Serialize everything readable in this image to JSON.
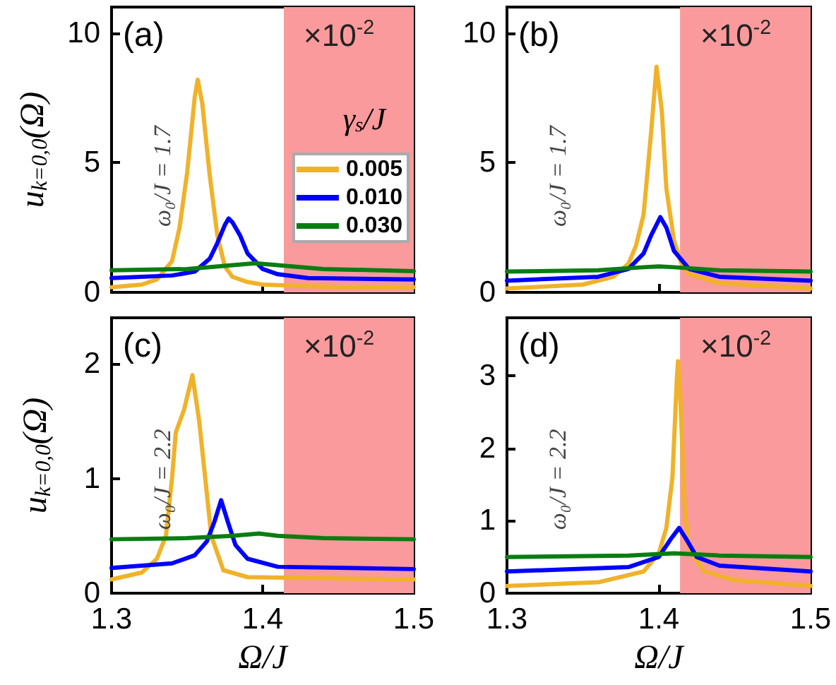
{
  "chart_data": [
    {
      "type": "line",
      "ylabel": "u$_{k=0,0}$(Ω)",
      "xlim": [
        1.3,
        1.5
      ],
      "xticks": [
        1.3,
        1.4,
        1.5
      ],
      "ylim": [
        0,
        11
      ],
      "yticks": [
        0,
        5,
        10
      ],
      "tick_labels": "y",
      "legend": "right",
      "legend_title": "γ$_{s}$/J",
      "annotations": [
        "(a)",
        "×10$^{-2}$",
        "ω₀/J = 1.7"
      ],
      "bands": [
        {
          "axis": "x",
          "from": 1.414,
          "to": 1.5,
          "color": "#fa9a9c"
        }
      ],
      "series": [
        {
          "name": "0.005",
          "color": "#f0b22a",
          "x": [
            1.3,
            1.32,
            1.33,
            1.34,
            1.345,
            1.35,
            1.355,
            1.357,
            1.36,
            1.365,
            1.37,
            1.375,
            1.38,
            1.39,
            1.4,
            1.45,
            1.5
          ],
          "values": [
            0.2,
            0.3,
            0.5,
            1.2,
            2.5,
            4.6,
            7.5,
            8.2,
            7.3,
            4.5,
            2.2,
            1.0,
            0.6,
            0.4,
            0.3,
            0.2,
            0.2
          ]
        },
        {
          "name": "0.010",
          "color": "#0000ff",
          "x": [
            1.3,
            1.34,
            1.355,
            1.365,
            1.37,
            1.375,
            1.3775,
            1.38,
            1.385,
            1.39,
            1.4,
            1.41,
            1.43,
            1.5
          ],
          "values": [
            0.55,
            0.65,
            0.8,
            1.3,
            1.9,
            2.6,
            2.85,
            2.7,
            2.2,
            1.5,
            0.9,
            0.7,
            0.55,
            0.5
          ]
        },
        {
          "name": "0.030",
          "color": "#0a7d12",
          "x": [
            1.3,
            1.35,
            1.38,
            1.395,
            1.41,
            1.44,
            1.5
          ],
          "values": [
            0.85,
            0.9,
            1.05,
            1.12,
            1.05,
            0.9,
            0.82
          ]
        }
      ]
    },
    {
      "type": "line",
      "xlim": [
        1.3,
        1.5
      ],
      "xticks": [
        1.3,
        1.4,
        1.5
      ],
      "ylim": [
        0,
        11
      ],
      "yticks": [
        0,
        5,
        10
      ],
      "tick_labels": "y",
      "annotations": [
        "(b)",
        "×10$^{-2}$",
        "ω₀/J = 1.7"
      ],
      "bands": [
        {
          "axis": "x",
          "from": 1.414,
          "to": 1.5,
          "color": "#fa9a9c"
        }
      ],
      "series": [
        {
          "color": "#f0b22a",
          "x": [
            1.3,
            1.35,
            1.37,
            1.38,
            1.385,
            1.39,
            1.395,
            1.3985,
            1.402,
            1.405,
            1.41,
            1.415,
            1.42,
            1.44,
            1.5
          ],
          "values": [
            0.15,
            0.3,
            0.6,
            1.1,
            1.8,
            3.0,
            6.2,
            8.7,
            7.0,
            4.0,
            2.0,
            1.1,
            0.7,
            0.35,
            0.15
          ]
        },
        {
          "color": "#0000ff",
          "x": [
            1.3,
            1.36,
            1.38,
            1.39,
            1.395,
            1.401,
            1.405,
            1.41,
            1.42,
            1.44,
            1.5
          ],
          "values": [
            0.45,
            0.6,
            0.9,
            1.5,
            2.2,
            2.9,
            2.5,
            1.6,
            0.9,
            0.6,
            0.45
          ]
        },
        {
          "color": "#0a7d12",
          "x": [
            1.3,
            1.36,
            1.39,
            1.4,
            1.41,
            1.44,
            1.5
          ],
          "values": [
            0.8,
            0.85,
            0.97,
            1.0,
            0.97,
            0.85,
            0.8
          ]
        }
      ]
    },
    {
      "type": "line",
      "ylabel": "u$_{k=0,0}$(Ω)",
      "xlabel": "Ω/J",
      "xlim": [
        1.3,
        1.5
      ],
      "xticks": [
        1.3,
        1.4,
        1.5
      ],
      "ylim": [
        0,
        2.4
      ],
      "yticks": [
        0,
        1,
        2
      ],
      "annotations": [
        "(c)",
        "×10$^{-2}$",
        "ω₀/J = 2.2"
      ],
      "bands": [
        {
          "axis": "x",
          "from": 1.414,
          "to": 1.5,
          "color": "#fa9a9c"
        }
      ],
      "series": [
        {
          "color": "#f0b22a",
          "x": [
            1.3,
            1.32,
            1.33,
            1.336,
            1.34,
            1.3425,
            1.348,
            1.3535,
            1.358,
            1.362,
            1.366,
            1.374,
            1.39,
            1.5
          ],
          "values": [
            0.12,
            0.18,
            0.3,
            0.5,
            1.0,
            1.4,
            1.6,
            1.9,
            1.5,
            1.0,
            0.5,
            0.2,
            0.14,
            0.12
          ]
        },
        {
          "color": "#0000ff",
          "x": [
            1.3,
            1.34,
            1.355,
            1.363,
            1.368,
            1.3725,
            1.377,
            1.382,
            1.39,
            1.41,
            1.5
          ],
          "values": [
            0.22,
            0.26,
            0.33,
            0.45,
            0.62,
            0.81,
            0.62,
            0.42,
            0.3,
            0.23,
            0.21
          ]
        },
        {
          "color": "#0a7d12",
          "x": [
            1.3,
            1.35,
            1.38,
            1.3976,
            1.41,
            1.44,
            1.5
          ],
          "values": [
            0.47,
            0.48,
            0.5,
            0.52,
            0.5,
            0.48,
            0.47
          ]
        }
      ]
    },
    {
      "type": "line",
      "xlabel": "Ω/J",
      "xlim": [
        1.3,
        1.5
      ],
      "xticks": [
        1.3,
        1.4,
        1.5
      ],
      "ylim": [
        0,
        3.8
      ],
      "yticks": [
        0,
        1,
        2,
        3
      ],
      "annotations": [
        "(d)",
        "×10$^{-2}$",
        "ω₀/J = 2.2"
      ],
      "bands": [
        {
          "axis": "x",
          "from": 1.414,
          "to": 1.5,
          "color": "#fa9a9c"
        }
      ],
      "series": [
        {
          "color": "#f0b22a",
          "x": [
            1.3,
            1.36,
            1.39,
            1.4,
            1.405,
            1.409,
            1.412,
            1.4127,
            1.414,
            1.417,
            1.42,
            1.43,
            1.45,
            1.5
          ],
          "values": [
            0.1,
            0.15,
            0.3,
            0.55,
            0.9,
            1.6,
            3.0,
            3.2,
            2.8,
            1.2,
            0.6,
            0.3,
            0.18,
            0.1
          ]
        },
        {
          "color": "#0000ff",
          "x": [
            1.3,
            1.38,
            1.4,
            1.408,
            1.4134,
            1.418,
            1.425,
            1.44,
            1.5
          ],
          "values": [
            0.3,
            0.36,
            0.5,
            0.75,
            0.9,
            0.75,
            0.5,
            0.38,
            0.3
          ]
        },
        {
          "color": "#0a7d12",
          "x": [
            1.3,
            1.38,
            1.41,
            1.44,
            1.5
          ],
          "values": [
            0.5,
            0.52,
            0.55,
            0.52,
            0.5
          ]
        }
      ]
    }
  ]
}
